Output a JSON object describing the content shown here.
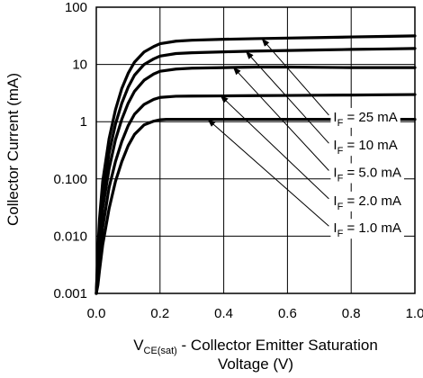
{
  "chart_data": {
    "type": "line",
    "xlabel_main": "V",
    "xlabel_sub": "CE(sat)",
    "xlabel_rest": " - Collector Emitter Saturation",
    "xlabel_line2": "Voltage (V)",
    "ylabel": "Collector Current (mA)",
    "xlim": [
      0,
      1.0
    ],
    "ylim": [
      0.001,
      100
    ],
    "yscale": "log",
    "grid": true,
    "x_ticks": [
      "0.0",
      "0.2",
      "0.4",
      "0.6",
      "0.8",
      "1.0"
    ],
    "x_tick_values": [
      0,
      0.2,
      0.4,
      0.6,
      0.8,
      1.0
    ],
    "y_ticks": [
      "0.001",
      "0.010",
      "0.100",
      "1",
      "10",
      "100"
    ],
    "y_tick_values": [
      0.001,
      0.01,
      0.1,
      1,
      10,
      100
    ],
    "series": [
      {
        "label_main": "I",
        "label_sub": "F",
        "label_rest": " = 25 mA",
        "x": [
          0.0,
          0.005,
          0.01,
          0.02,
          0.04,
          0.06,
          0.08,
          0.1,
          0.12,
          0.15,
          0.18,
          0.2,
          0.25,
          0.3,
          0.4,
          0.5,
          0.6,
          0.7,
          0.8,
          0.9,
          1.0
        ],
        "y": [
          0.001,
          0.006,
          0.02,
          0.09,
          0.5,
          1.6,
          3.8,
          7.0,
          11.0,
          16.5,
          20.5,
          23.0,
          25.5,
          26.5,
          27.5,
          28.2,
          28.9,
          29.5,
          30.2,
          30.8,
          31.5
        ]
      },
      {
        "label_main": "I",
        "label_sub": "F",
        "label_rest": " = 10 mA",
        "x": [
          0.0,
          0.005,
          0.01,
          0.02,
          0.04,
          0.06,
          0.08,
          0.1,
          0.12,
          0.15,
          0.18,
          0.2,
          0.25,
          0.3,
          0.4,
          0.5,
          0.6,
          0.7,
          0.8,
          0.9,
          1.0
        ],
        "y": [
          0.001,
          0.004,
          0.012,
          0.05,
          0.28,
          0.9,
          2.1,
          4.0,
          6.5,
          10.0,
          12.5,
          14.0,
          15.5,
          16.0,
          16.6,
          17.1,
          17.5,
          17.9,
          18.3,
          18.6,
          19.0
        ]
      },
      {
        "label_main": "I",
        "label_sub": "F",
        "label_rest": " = 5.0 mA",
        "x": [
          0.0,
          0.005,
          0.01,
          0.02,
          0.04,
          0.06,
          0.08,
          0.1,
          0.12,
          0.15,
          0.18,
          0.2,
          0.25,
          0.3,
          0.4,
          0.5,
          0.6,
          0.7,
          0.8,
          0.9,
          1.0
        ],
        "y": [
          0.001,
          0.0025,
          0.007,
          0.03,
          0.15,
          0.48,
          1.1,
          2.1,
          3.4,
          5.3,
          6.8,
          7.6,
          8.3,
          8.6,
          8.8,
          9.0,
          9.0,
          8.9,
          8.8,
          8.8,
          8.8
        ]
      },
      {
        "label_main": "I",
        "label_sub": "F",
        "label_rest": " = 2.0 mA",
        "x": [
          0.0,
          0.005,
          0.01,
          0.02,
          0.04,
          0.06,
          0.08,
          0.1,
          0.12,
          0.15,
          0.18,
          0.2,
          0.25,
          0.3,
          0.4,
          0.5,
          0.6,
          0.7,
          0.8,
          0.9,
          1.0
        ],
        "y": [
          0.001,
          0.0018,
          0.004,
          0.014,
          0.07,
          0.2,
          0.45,
          0.85,
          1.35,
          2.0,
          2.45,
          2.65,
          2.78,
          2.8,
          2.82,
          2.85,
          2.87,
          2.9,
          2.92,
          2.95,
          2.98
        ]
      },
      {
        "label_main": "I",
        "label_sub": "F",
        "label_rest": " = 1.0 mA",
        "x": [
          0.0,
          0.005,
          0.01,
          0.02,
          0.04,
          0.06,
          0.08,
          0.1,
          0.12,
          0.15,
          0.18,
          0.2,
          0.22,
          0.25,
          0.3,
          0.4,
          0.5,
          0.6,
          0.7,
          0.8,
          0.9,
          1.0
        ],
        "y": [
          0.001,
          0.0014,
          0.0025,
          0.007,
          0.03,
          0.09,
          0.2,
          0.38,
          0.6,
          0.88,
          1.02,
          1.08,
          1.1,
          1.1,
          1.1,
          1.1,
          1.1,
          1.1,
          1.1,
          1.1,
          1.1,
          1.1
        ]
      }
    ],
    "annotation_arrows_from_x": [
      0.73,
      0.73,
      0.73,
      0.73,
      0.73
    ],
    "annotation_arrows_from_y": [
      1.3,
      0.42,
      0.14,
      0.045,
      0.015
    ],
    "annotation_arrows_to_x": [
      0.52,
      0.47,
      0.43,
      0.39,
      0.35
    ],
    "annotation_arrows_to_y": [
      28.0,
      16.8,
      8.9,
      2.85,
      1.1
    ]
  }
}
